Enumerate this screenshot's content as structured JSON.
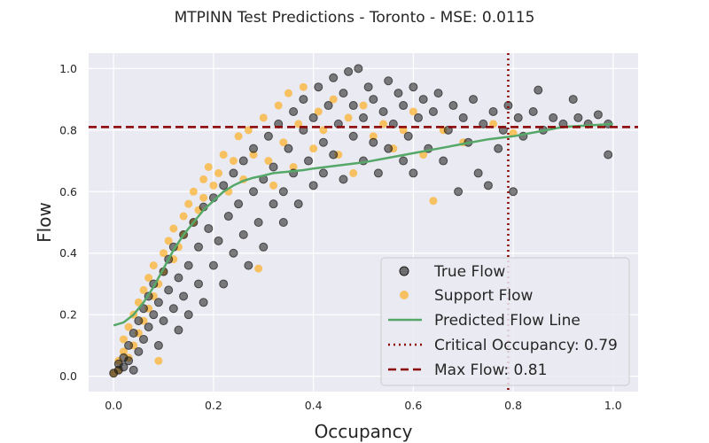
{
  "chart_data": {
    "type": "scatter",
    "title": "MTPINN Test Predictions - Toronto - MSE: 0.0115",
    "xlabel": "Occupancy",
    "ylabel": "Flow",
    "xlim": [
      -0.05,
      1.05
    ],
    "ylim": [
      -0.05,
      1.05
    ],
    "x_ticks": [
      0.0,
      0.2,
      0.4,
      0.6,
      0.8,
      1.0
    ],
    "y_ticks": [
      0.0,
      0.2,
      0.4,
      0.6,
      0.8,
      1.0
    ],
    "x_tick_labels": [
      "0.0",
      "0.2",
      "0.4",
      "0.6",
      "0.8",
      "1.0"
    ],
    "y_tick_labels": [
      "0.0",
      "0.2",
      "0.4",
      "0.6",
      "0.8",
      "1.0"
    ],
    "grid": true,
    "legend_position": "lower-right",
    "series": [
      {
        "name": "True Flow",
        "kind": "scatter",
        "color": "#1a1a1a",
        "points": [
          [
            0.0,
            0.01
          ],
          [
            0.01,
            0.02
          ],
          [
            0.01,
            0.04
          ],
          [
            0.02,
            0.06
          ],
          [
            0.02,
            0.03
          ],
          [
            0.03,
            0.1
          ],
          [
            0.03,
            0.05
          ],
          [
            0.04,
            0.14
          ],
          [
            0.04,
            0.02
          ],
          [
            0.05,
            0.18
          ],
          [
            0.05,
            0.08
          ],
          [
            0.06,
            0.12
          ],
          [
            0.06,
            0.22
          ],
          [
            0.07,
            0.16
          ],
          [
            0.07,
            0.26
          ],
          [
            0.08,
            0.2
          ],
          [
            0.08,
            0.3
          ],
          [
            0.09,
            0.1
          ],
          [
            0.09,
            0.24
          ],
          [
            0.1,
            0.34
          ],
          [
            0.1,
            0.18
          ],
          [
            0.11,
            0.38
          ],
          [
            0.11,
            0.28
          ],
          [
            0.12,
            0.22
          ],
          [
            0.12,
            0.42
          ],
          [
            0.13,
            0.32
          ],
          [
            0.13,
            0.15
          ],
          [
            0.14,
            0.46
          ],
          [
            0.14,
            0.26
          ],
          [
            0.15,
            0.36
          ],
          [
            0.15,
            0.2
          ],
          [
            0.16,
            0.5
          ],
          [
            0.17,
            0.3
          ],
          [
            0.17,
            0.42
          ],
          [
            0.18,
            0.55
          ],
          [
            0.18,
            0.24
          ],
          [
            0.19,
            0.48
          ],
          [
            0.2,
            0.36
          ],
          [
            0.2,
            0.58
          ],
          [
            0.21,
            0.44
          ],
          [
            0.22,
            0.62
          ],
          [
            0.22,
            0.3
          ],
          [
            0.23,
            0.52
          ],
          [
            0.24,
            0.4
          ],
          [
            0.24,
            0.66
          ],
          [
            0.25,
            0.56
          ],
          [
            0.26,
            0.46
          ],
          [
            0.26,
            0.7
          ],
          [
            0.27,
            0.36
          ],
          [
            0.28,
            0.6
          ],
          [
            0.28,
            0.74
          ],
          [
            0.29,
            0.5
          ],
          [
            0.3,
            0.64
          ],
          [
            0.3,
            0.42
          ],
          [
            0.31,
            0.78
          ],
          [
            0.32,
            0.56
          ],
          [
            0.32,
            0.68
          ],
          [
            0.33,
            0.82
          ],
          [
            0.34,
            0.6
          ],
          [
            0.34,
            0.5
          ],
          [
            0.35,
            0.74
          ],
          [
            0.36,
            0.86
          ],
          [
            0.36,
            0.66
          ],
          [
            0.37,
            0.56
          ],
          [
            0.38,
            0.8
          ],
          [
            0.38,
            0.9
          ],
          [
            0.39,
            0.7
          ],
          [
            0.4,
            0.62
          ],
          [
            0.4,
            0.84
          ],
          [
            0.41,
            0.94
          ],
          [
            0.42,
            0.76
          ],
          [
            0.42,
            0.66
          ],
          [
            0.43,
            0.88
          ],
          [
            0.44,
            0.97
          ],
          [
            0.44,
            0.72
          ],
          [
            0.45,
            0.82
          ],
          [
            0.46,
            0.92
          ],
          [
            0.46,
            0.64
          ],
          [
            0.47,
            0.99
          ],
          [
            0.48,
            0.78
          ],
          [
            0.48,
            0.88
          ],
          [
            0.49,
            1.0
          ],
          [
            0.5,
            0.7
          ],
          [
            0.5,
            0.84
          ],
          [
            0.51,
            0.94
          ],
          [
            0.52,
            0.76
          ],
          [
            0.52,
            0.9
          ],
          [
            0.53,
            0.66
          ],
          [
            0.54,
            0.86
          ],
          [
            0.55,
            0.96
          ],
          [
            0.55,
            0.74
          ],
          [
            0.56,
            0.82
          ],
          [
            0.57,
            0.92
          ],
          [
            0.58,
            0.7
          ],
          [
            0.58,
            0.88
          ],
          [
            0.59,
            0.78
          ],
          [
            0.6,
            0.94
          ],
          [
            0.6,
            0.66
          ],
          [
            0.61,
            0.84
          ],
          [
            0.62,
            0.9
          ],
          [
            0.63,
            0.74
          ],
          [
            0.64,
            0.86
          ],
          [
            0.65,
            0.92
          ],
          [
            0.66,
            0.7
          ],
          [
            0.67,
            0.8
          ],
          [
            0.68,
            0.88
          ],
          [
            0.69,
            0.6
          ],
          [
            0.7,
            0.84
          ],
          [
            0.71,
            0.76
          ],
          [
            0.72,
            0.9
          ],
          [
            0.73,
            0.66
          ],
          [
            0.74,
            0.82
          ],
          [
            0.75,
            0.62
          ],
          [
            0.76,
            0.86
          ],
          [
            0.77,
            0.74
          ],
          [
            0.78,
            0.8
          ],
          [
            0.79,
            0.88
          ],
          [
            0.8,
            0.6
          ],
          [
            0.81,
            0.84
          ],
          [
            0.82,
            0.78
          ],
          [
            0.84,
            0.86
          ],
          [
            0.85,
            0.93
          ],
          [
            0.86,
            0.8
          ],
          [
            0.88,
            0.84
          ],
          [
            0.9,
            0.82
          ],
          [
            0.92,
            0.9
          ],
          [
            0.93,
            0.84
          ],
          [
            0.95,
            0.82
          ],
          [
            0.97,
            0.85
          ],
          [
            0.99,
            0.72
          ],
          [
            0.99,
            0.82
          ]
        ]
      },
      {
        "name": "Support Flow",
        "kind": "scatter",
        "color": "#ffa500",
        "points": [
          [
            0.0,
            0.01
          ],
          [
            0.01,
            0.05
          ],
          [
            0.01,
            0.02
          ],
          [
            0.02,
            0.08
          ],
          [
            0.02,
            0.12
          ],
          [
            0.03,
            0.06
          ],
          [
            0.03,
            0.16
          ],
          [
            0.04,
            0.1
          ],
          [
            0.04,
            0.2
          ],
          [
            0.05,
            0.14
          ],
          [
            0.05,
            0.24
          ],
          [
            0.06,
            0.18
          ],
          [
            0.06,
            0.28
          ],
          [
            0.07,
            0.22
          ],
          [
            0.07,
            0.32
          ],
          [
            0.08,
            0.26
          ],
          [
            0.08,
            0.36
          ],
          [
            0.09,
            0.3
          ],
          [
            0.09,
            0.05
          ],
          [
            0.1,
            0.4
          ],
          [
            0.1,
            0.34
          ],
          [
            0.11,
            0.44
          ],
          [
            0.12,
            0.38
          ],
          [
            0.12,
            0.48
          ],
          [
            0.13,
            0.42
          ],
          [
            0.14,
            0.52
          ],
          [
            0.14,
            0.46
          ],
          [
            0.15,
            0.56
          ],
          [
            0.16,
            0.5
          ],
          [
            0.16,
            0.6
          ],
          [
            0.17,
            0.54
          ],
          [
            0.18,
            0.64
          ],
          [
            0.18,
            0.58
          ],
          [
            0.19,
            0.68
          ],
          [
            0.2,
            0.62
          ],
          [
            0.21,
            0.66
          ],
          [
            0.22,
            0.72
          ],
          [
            0.23,
            0.6
          ],
          [
            0.24,
            0.7
          ],
          [
            0.25,
            0.78
          ],
          [
            0.26,
            0.64
          ],
          [
            0.27,
            0.8
          ],
          [
            0.28,
            0.72
          ],
          [
            0.29,
            0.35
          ],
          [
            0.3,
            0.84
          ],
          [
            0.31,
            0.7
          ],
          [
            0.32,
            0.62
          ],
          [
            0.33,
            0.88
          ],
          [
            0.34,
            0.76
          ],
          [
            0.35,
            0.92
          ],
          [
            0.36,
            0.68
          ],
          [
            0.37,
            0.82
          ],
          [
            0.38,
            0.94
          ],
          [
            0.4,
            0.74
          ],
          [
            0.41,
            0.86
          ],
          [
            0.42,
            0.8
          ],
          [
            0.44,
            0.9
          ],
          [
            0.45,
            0.72
          ],
          [
            0.47,
            0.84
          ],
          [
            0.48,
            0.66
          ],
          [
            0.5,
            0.88
          ],
          [
            0.52,
            0.78
          ],
          [
            0.54,
            0.82
          ],
          [
            0.56,
            0.74
          ],
          [
            0.58,
            0.8
          ],
          [
            0.6,
            0.86
          ],
          [
            0.62,
            0.72
          ],
          [
            0.64,
            0.57
          ],
          [
            0.66,
            0.8
          ],
          [
            0.7,
            0.76
          ],
          [
            0.76,
            0.82
          ],
          [
            0.8,
            0.79
          ]
        ]
      },
      {
        "name": "Predicted Flow Line",
        "kind": "line",
        "color": "#55a868",
        "points": [
          [
            0.0,
            0.165
          ],
          [
            0.02,
            0.175
          ],
          [
            0.04,
            0.2
          ],
          [
            0.06,
            0.24
          ],
          [
            0.08,
            0.29
          ],
          [
            0.1,
            0.35
          ],
          [
            0.12,
            0.41
          ],
          [
            0.14,
            0.46
          ],
          [
            0.16,
            0.5
          ],
          [
            0.18,
            0.54
          ],
          [
            0.2,
            0.57
          ],
          [
            0.22,
            0.6
          ],
          [
            0.24,
            0.62
          ],
          [
            0.26,
            0.635
          ],
          [
            0.28,
            0.645
          ],
          [
            0.3,
            0.652
          ],
          [
            0.32,
            0.66
          ],
          [
            0.35,
            0.665
          ],
          [
            0.38,
            0.67
          ],
          [
            0.4,
            0.675
          ],
          [
            0.45,
            0.685
          ],
          [
            0.5,
            0.695
          ],
          [
            0.55,
            0.71
          ],
          [
            0.6,
            0.725
          ],
          [
            0.65,
            0.74
          ],
          [
            0.7,
            0.755
          ],
          [
            0.75,
            0.77
          ],
          [
            0.8,
            0.78
          ],
          [
            0.85,
            0.795
          ],
          [
            0.9,
            0.81
          ],
          [
            0.95,
            0.815
          ],
          [
            1.0,
            0.82
          ]
        ]
      }
    ],
    "reference_lines": [
      {
        "name": "Critical Occupancy: 0.79",
        "orientation": "vertical",
        "value": 0.79,
        "color": "#8b0000",
        "style": "dotted"
      },
      {
        "name": "Max Flow: 0.81",
        "orientation": "horizontal",
        "value": 0.81,
        "color": "#8b0000",
        "style": "dashed"
      }
    ]
  }
}
